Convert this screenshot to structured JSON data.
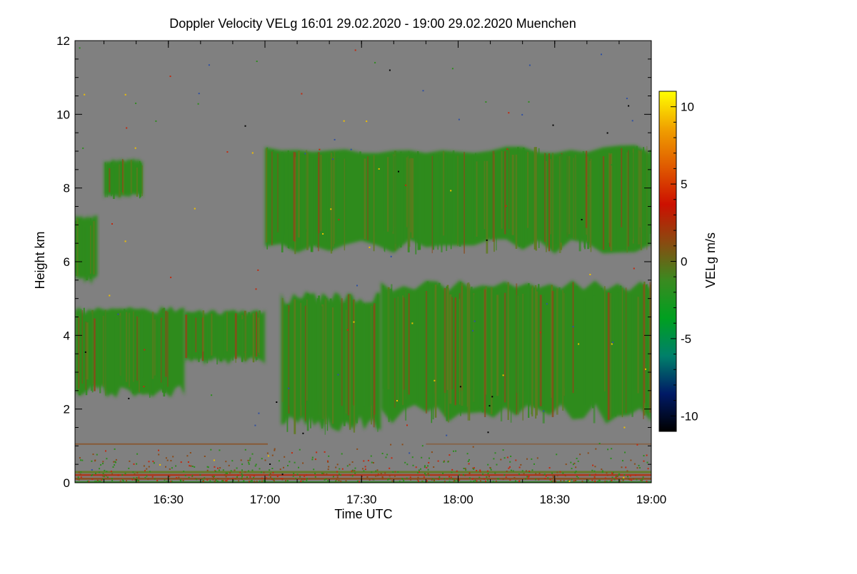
{
  "chart_data": {
    "type": "heatmap",
    "title": "Doppler Velocity VELg   16:01 29.02.2020 - 19:00 29.02.2020 Muenchen",
    "xlabel": "Time UTC",
    "ylabel": "Height km",
    "colorbar_label": "VELg m/s",
    "x_range": [
      "16:01",
      "19:00"
    ],
    "x_ticks": [
      "16:30",
      "17:00",
      "17:30",
      "18:00",
      "18:30",
      "19:00"
    ],
    "ylim": [
      0,
      12
    ],
    "y_ticks": [
      "0",
      "2",
      "4",
      "6",
      "8",
      "10",
      "12"
    ],
    "colorbar_range": [
      -11,
      11
    ],
    "colorbar_ticks": [
      "-10",
      "-5",
      "0",
      "5",
      "10"
    ],
    "colormap": [
      "#000000",
      "#001a66",
      "#00806a",
      "#00a020",
      "#3a8a20",
      "#8a4a10",
      "#cc1000",
      "#e05a00",
      "#f0a000",
      "#ffff00"
    ],
    "background_color": "#808080",
    "echo_colors": {
      "green": "#2e8b1e",
      "olive": "#5e7a1c",
      "brown": "#8a4a18"
    },
    "echo_regions": [
      {
        "start": "16:01",
        "end": "16:08",
        "bottom_km": 5.4,
        "top_km": 7.3
      },
      {
        "start": "16:01",
        "end": "16:35",
        "bottom_km": 2.3,
        "top_km": 4.8
      },
      {
        "start": "16:35",
        "end": "17:00",
        "bottom_km": 3.2,
        "top_km": 4.7
      },
      {
        "start": "16:10",
        "end": "16:22",
        "bottom_km": 7.7,
        "top_km": 8.8
      },
      {
        "start": "17:05",
        "end": "17:36",
        "bottom_km": 1.3,
        "top_km": 5.2
      },
      {
        "start": "17:00",
        "end": "19:00",
        "bottom_km": 6.2,
        "top_km": 9.2
      },
      {
        "start": "17:36",
        "end": "19:00",
        "bottom_km": 1.6,
        "top_km": 5.5
      }
    ],
    "grid": false
  }
}
